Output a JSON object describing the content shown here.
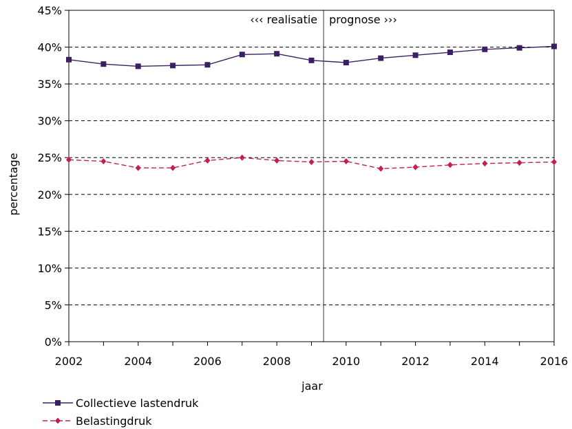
{
  "chart_data": {
    "type": "line",
    "xlabel": "jaar",
    "ylabel": "percentage",
    "x": [
      2002,
      2003,
      2004,
      2005,
      2006,
      2007,
      2008,
      2009,
      2010,
      2011,
      2012,
      2013,
      2014,
      2015,
      2016
    ],
    "x_ticks": [
      "2002",
      "2004",
      "2006",
      "2008",
      "2010",
      "2012",
      "2014",
      "2016"
    ],
    "xlim": [
      2002,
      2016
    ],
    "ylim": [
      0,
      45
    ],
    "y_ticks": [
      "0%",
      "5%",
      "10%",
      "15%",
      "20%",
      "25%",
      "30%",
      "35%",
      "40%",
      "45%"
    ],
    "grid": "horizontal dashed",
    "legend_position": "bottom-left",
    "annotations": {
      "left": "‹‹‹ realisatie",
      "right": "prognose ›››",
      "divider_x": 2009.35
    },
    "series": [
      {
        "name": "Collectieve lastendruk",
        "color": "#3a1f63",
        "marker": "square",
        "line_style": "solid",
        "values": [
          38.3,
          37.7,
          37.4,
          37.5,
          37.6,
          39.0,
          39.1,
          38.2,
          37.9,
          38.5,
          38.9,
          39.3,
          39.7,
          39.9,
          40.1
        ]
      },
      {
        "name": "Belastingdruk",
        "color": "#c41e4a",
        "marker": "diamond",
        "line_style": "dashed",
        "values": [
          24.7,
          24.5,
          23.6,
          23.6,
          24.6,
          25.0,
          24.6,
          24.4,
          24.5,
          23.5,
          23.7,
          24.0,
          24.2,
          24.3,
          24.4
        ]
      }
    ]
  }
}
